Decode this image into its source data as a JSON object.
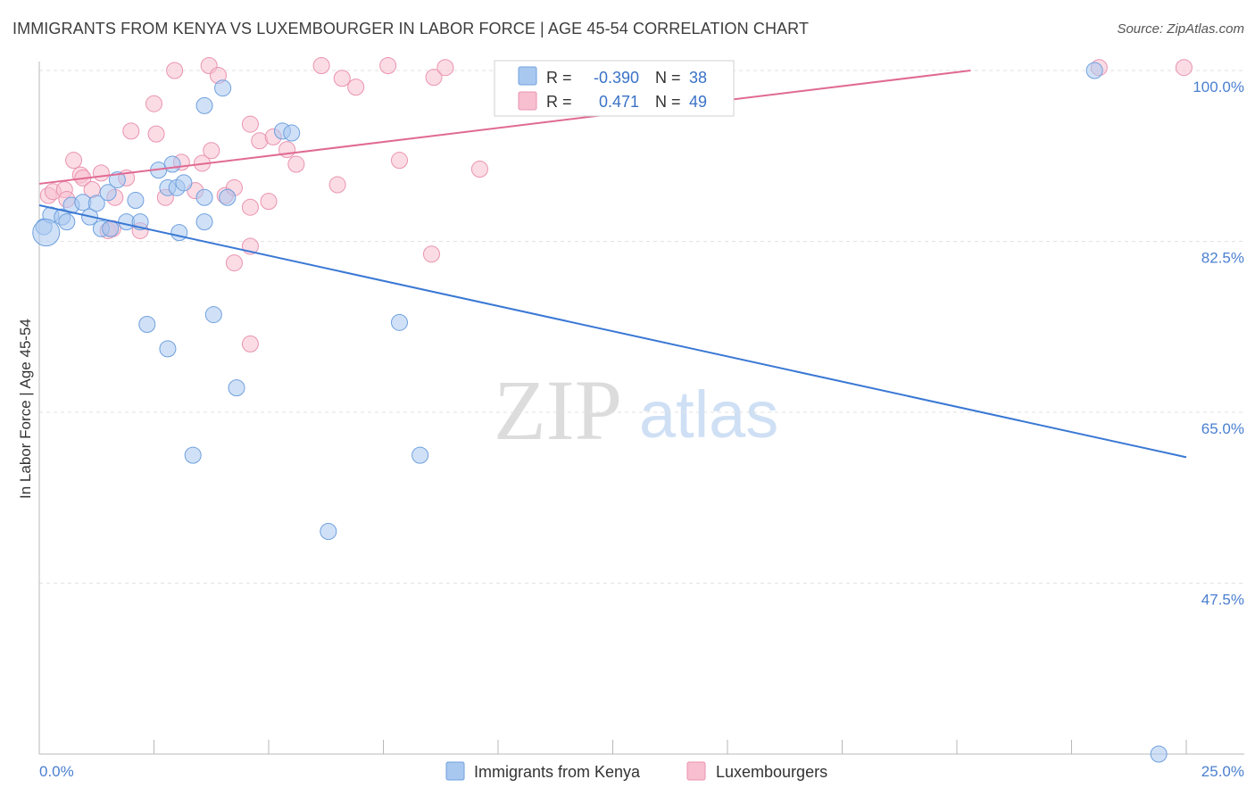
{
  "title": "IMMIGRANTS FROM KENYA VS LUXEMBOURGER IN LABOR FORCE | AGE 45-54 CORRELATION CHART",
  "source": "Source: ZipAtlas.com",
  "watermark": {
    "zip": "ZIP",
    "atlas": "atlas"
  },
  "colors": {
    "blue_fill": "#a9c8f0",
    "blue_stroke": "#6fa0de",
    "blue_line": "#3a78d4",
    "pink_fill": "#f7bfd0",
    "pink_stroke": "#ea93b0",
    "pink_line": "#e06a93",
    "tick_text": "#4a7fd0",
    "grid": "#e2e2e2"
  },
  "stats": {
    "r_label": "R =",
    "n_label": "N =",
    "blue": {
      "r": "-0.390",
      "n": "38"
    },
    "pink": {
      "r": "0.471",
      "n": "49"
    }
  },
  "chart_data": {
    "type": "scatter",
    "ylabel": "In Labor Force | Age 45-54",
    "xlim": [
      0,
      25
    ],
    "ylim": [
      30,
      100
    ],
    "x_tick_labels": {
      "min": "0.0%",
      "max": "25.0%"
    },
    "y_ticks": [
      {
        "value": 100,
        "label": "100.0%"
      },
      {
        "value": 82.5,
        "label": "82.5%"
      },
      {
        "value": 65,
        "label": "65.0%"
      },
      {
        "value": 47.5,
        "label": "47.5%"
      }
    ],
    "series": [
      {
        "name": "Immigrants from Kenya",
        "color": "blue",
        "trend": {
          "x": [
            0,
            25
          ],
          "y": [
            86.2,
            60.4
          ]
        },
        "points": [
          [
            0.1,
            84.0
          ],
          [
            0.25,
            85.2
          ],
          [
            0.5,
            85.0
          ],
          [
            0.6,
            84.5
          ],
          [
            0.7,
            86.2
          ],
          [
            0.95,
            86.5
          ],
          [
            1.1,
            85.0
          ],
          [
            1.25,
            86.4
          ],
          [
            1.5,
            87.5
          ],
          [
            1.35,
            83.8
          ],
          [
            1.55,
            83.8
          ],
          [
            1.7,
            88.8
          ],
          [
            1.9,
            84.5
          ],
          [
            2.2,
            84.5
          ],
          [
            2.1,
            86.7
          ],
          [
            2.6,
            89.8
          ],
          [
            2.9,
            90.4
          ],
          [
            2.8,
            88.0
          ],
          [
            3.0,
            88.0
          ],
          [
            3.15,
            88.5
          ],
          [
            3.05,
            83.4
          ],
          [
            3.6,
            87.0
          ],
          [
            3.6,
            96.4
          ],
          [
            4.0,
            98.2
          ],
          [
            4.1,
            87.0
          ],
          [
            3.6,
            84.5
          ],
          [
            5.3,
            93.8
          ],
          [
            5.5,
            93.6
          ],
          [
            2.8,
            71.5
          ],
          [
            2.35,
            74.0
          ],
          [
            3.8,
            75.0
          ],
          [
            4.3,
            67.5
          ],
          [
            3.35,
            60.6
          ],
          [
            7.85,
            74.2
          ],
          [
            8.3,
            60.6
          ],
          [
            6.3,
            52.8
          ],
          [
            23.0,
            100.0
          ],
          [
            24.4,
            30.0
          ]
        ]
      },
      {
        "name": "Luxembourgers",
        "color": "pink",
        "trend": {
          "x": [
            0,
            20.3
          ],
          "y": [
            88.4,
            100.0
          ]
        },
        "points": [
          [
            0.2,
            87.2
          ],
          [
            0.3,
            87.6
          ],
          [
            0.55,
            87.8
          ],
          [
            0.6,
            86.8
          ],
          [
            0.75,
            90.8
          ],
          [
            0.9,
            89.3
          ],
          [
            0.95,
            89.0
          ],
          [
            1.15,
            87.8
          ],
          [
            1.35,
            89.5
          ],
          [
            1.5,
            83.6
          ],
          [
            1.65,
            87.0
          ],
          [
            1.9,
            89.0
          ],
          [
            2.0,
            93.8
          ],
          [
            2.2,
            83.6
          ],
          [
            2.5,
            96.6
          ],
          [
            2.55,
            93.5
          ],
          [
            2.75,
            87.0
          ],
          [
            3.1,
            90.6
          ],
          [
            3.4,
            87.7
          ],
          [
            3.55,
            90.5
          ],
          [
            3.75,
            91.8
          ],
          [
            4.05,
            87.2
          ],
          [
            4.25,
            88.0
          ],
          [
            4.25,
            80.3
          ],
          [
            4.6,
            94.5
          ],
          [
            4.8,
            92.8
          ],
          [
            4.6,
            86.0
          ],
          [
            4.6,
            72.0
          ],
          [
            5.1,
            93.2
          ],
          [
            5.0,
            86.6
          ],
          [
            5.6,
            90.4
          ],
          [
            5.4,
            91.9
          ],
          [
            6.5,
            88.3
          ],
          [
            6.15,
            100.5
          ],
          [
            6.6,
            99.2
          ],
          [
            6.9,
            98.3
          ],
          [
            7.6,
            100.5
          ],
          [
            7.85,
            90.8
          ],
          [
            8.6,
            99.3
          ],
          [
            8.85,
            100.3
          ],
          [
            9.6,
            89.9
          ],
          [
            2.95,
            100.0
          ],
          [
            3.7,
            100.5
          ],
          [
            4.6,
            82.0
          ],
          [
            8.55,
            81.2
          ],
          [
            23.1,
            100.3
          ],
          [
            24.95,
            100.3
          ],
          [
            3.9,
            99.5
          ],
          [
            1.6,
            83.8
          ]
        ]
      }
    ]
  },
  "legend": {
    "items": [
      {
        "label": "Immigrants from Kenya"
      },
      {
        "label": "Luxembourgers"
      }
    ]
  }
}
